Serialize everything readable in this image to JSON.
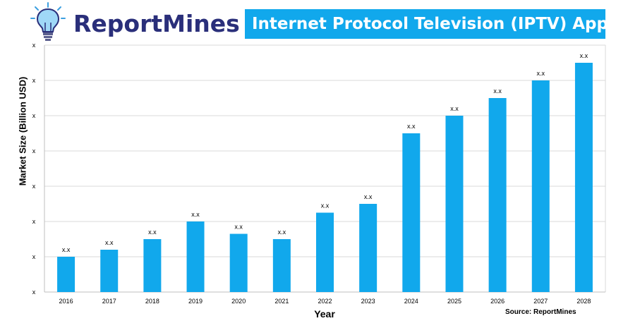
{
  "header": {
    "brand": "ReportMines",
    "logo_icon": "lightbulb-icon",
    "banner_color": "#11a8ec",
    "brand_color": "#2a2f7a"
  },
  "chart_data": {
    "type": "bar",
    "title": "Internet Protocol Television (IPTV) Apps",
    "xlabel": "Year",
    "ylabel": "Market Size (Billion USD)",
    "source": "Source: ReportMines",
    "categories": [
      "2016",
      "2017",
      "2018",
      "2019",
      "2020",
      "2021",
      "2022",
      "2023",
      "2024",
      "2025",
      "2026",
      "2027",
      "2028"
    ],
    "values": [
      1.0,
      1.2,
      1.5,
      2.0,
      1.65,
      1.5,
      2.25,
      2.5,
      4.5,
      5.0,
      5.5,
      6.0,
      6.5
    ],
    "data_labels": [
      "x.x",
      "x.x",
      "x.x",
      "x.x",
      "x.x",
      "x.x",
      "x.x",
      "x.x",
      "x.x",
      "x.x",
      "x.x",
      "x.x",
      "x.x"
    ],
    "y_tick_labels": [
      "x",
      "x",
      "x",
      "x",
      "x",
      "x",
      "x",
      "x"
    ],
    "ylim": [
      0,
      7
    ],
    "grid": true,
    "bar_color": "#11a8ec",
    "legend": "none"
  }
}
